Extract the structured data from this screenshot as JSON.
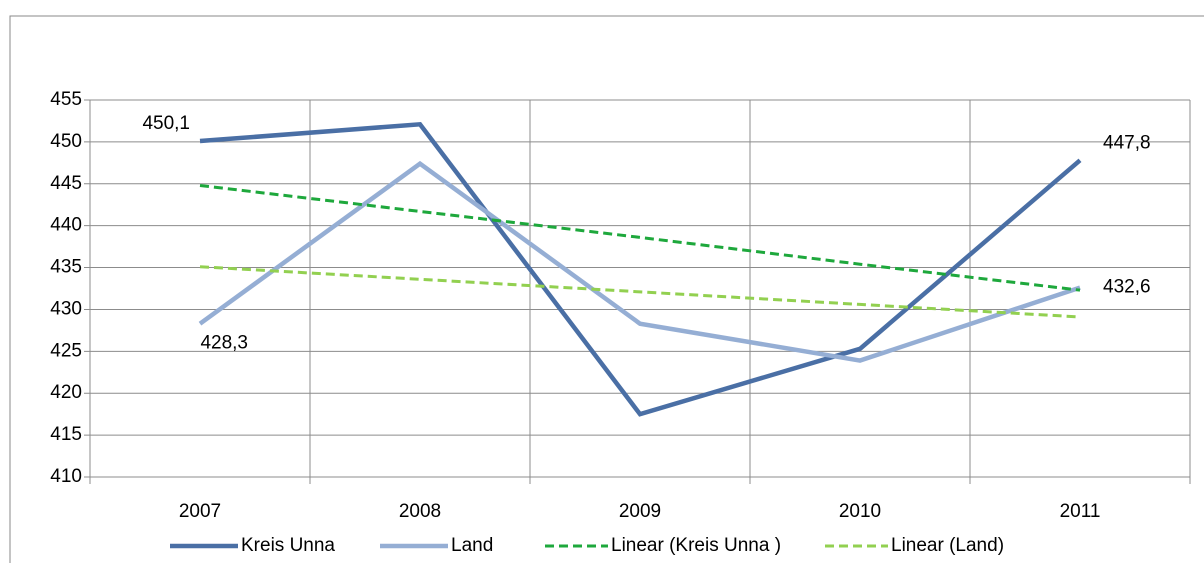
{
  "chart_data": {
    "type": "line",
    "categories": [
      "2007",
      "2008",
      "2009",
      "2010",
      "2011"
    ],
    "series": [
      {
        "name": "Kreis Unna",
        "color": "#4a6fa5",
        "dash": false,
        "values": [
          450.1,
          452.1,
          417.5,
          425.3,
          447.8
        ],
        "value_labels": [
          "450,1",
          null,
          null,
          null,
          "447,8"
        ]
      },
      {
        "name": "Land",
        "color": "#95aed4",
        "dash": false,
        "values": [
          428.3,
          447.4,
          428.3,
          423.9,
          432.6
        ],
        "value_labels": [
          "428,3",
          null,
          null,
          null,
          "432,6"
        ]
      },
      {
        "name": "Linear (Kreis Unna )",
        "color": "#1ea83c",
        "dash": true,
        "values": [
          444.8,
          441.7,
          438.6,
          435.4,
          432.3
        ]
      },
      {
        "name": "Linear (Land)",
        "color": "#92d050",
        "dash": true,
        "values": [
          435.1,
          433.6,
          432.1,
          430.6,
          429.1
        ]
      }
    ],
    "ylim": [
      410,
      455
    ],
    "yticks": [
      410,
      415,
      420,
      425,
      430,
      435,
      440,
      445,
      450,
      455
    ],
    "grid": true,
    "legend": "bottom"
  }
}
